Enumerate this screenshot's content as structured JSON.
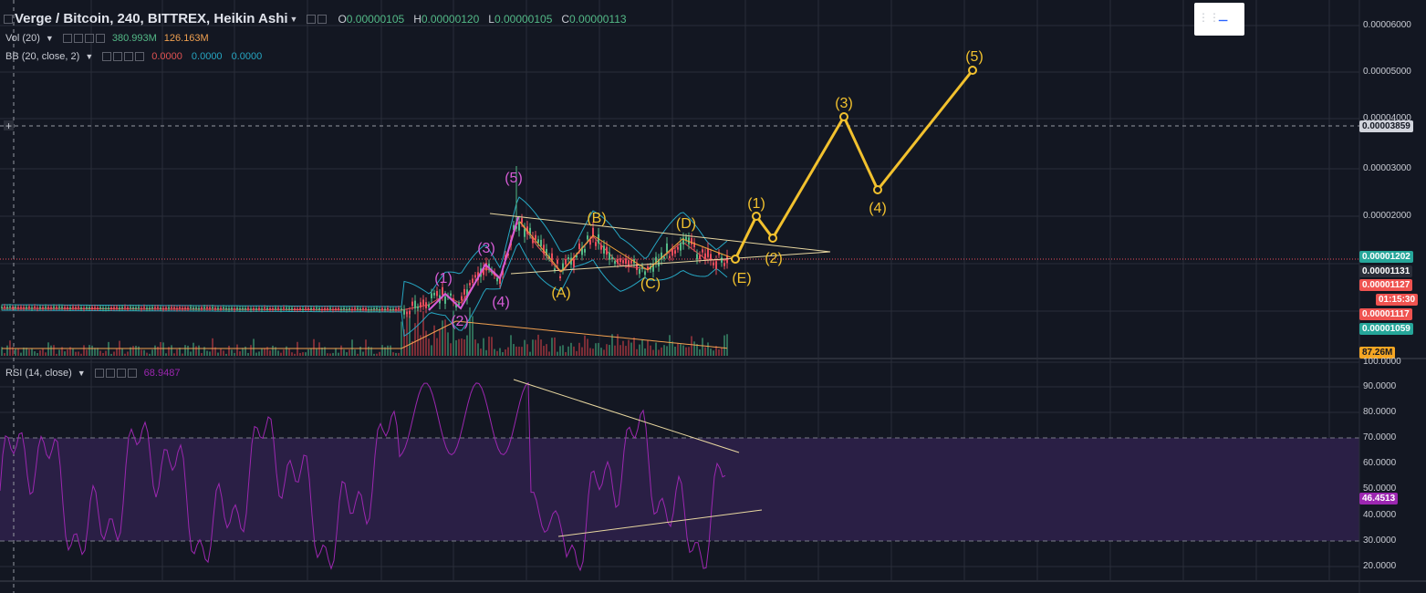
{
  "header": {
    "title": "Verge / Bitcoin, 240, BITTREX, Heikin Ashi",
    "ohlc": [
      {
        "k": "O",
        "v": "0.00000105"
      },
      {
        "k": "H",
        "v": "0.00000120"
      },
      {
        "k": "L",
        "v": "0.00000105"
      },
      {
        "k": "C",
        "v": "0.00000113"
      }
    ]
  },
  "indicators": {
    "vol": {
      "name": "Vol (20)",
      "v1": "380.993M",
      "v2": "126.163M"
    },
    "bb": {
      "name": "BB (20, close, 2)",
      "v1": "0.0000",
      "v2": "0.0000",
      "v3": "0.0000"
    },
    "rsi": {
      "name": "RSI (14, close)",
      "value": "68.9487"
    }
  },
  "price_axis": {
    "labels": [
      "0.00006000",
      "0.00005000",
      "0.00004000",
      "0.00003000",
      "0.00002000"
    ],
    "crosshair_price": "0.00003859",
    "tags": [
      {
        "text": "0.00001202",
        "color": "#26a69a"
      },
      {
        "text": "0.00001131",
        "color": "#2a2e39"
      },
      {
        "text": "0.00001127",
        "color": "#ef5350"
      },
      {
        "text": "01:15:30",
        "color": "#ef5350"
      },
      {
        "text": "0.00001117",
        "color": "#ef5350"
      },
      {
        "text": "0.00001059",
        "color": "#26a69a"
      }
    ],
    "volume_tag": "87.26M"
  },
  "rsi_axis": {
    "labels": [
      "100.0000",
      "90.0000",
      "80.0000",
      "70.0000",
      "60.0000",
      "50.0000",
      "40.0000",
      "30.0000",
      "20.0000"
    ],
    "current": "46.4513"
  },
  "wave_labels": {
    "historical": [
      "(1)",
      "(2)",
      "(3)",
      "(4)",
      "(5)"
    ],
    "corrective": [
      "(A)",
      "(B)",
      "(C)",
      "(D)",
      "(E)"
    ],
    "projection": [
      "(1)",
      "(2)",
      "(3)",
      "(4)",
      "(5)"
    ]
  },
  "colors": {
    "background": "#131722",
    "up": "#53b987",
    "down": "#eb4d5c",
    "projection": "#f2c12e",
    "wave": "#d65cd6",
    "rsi": "#9c27b0",
    "bb": "#26a6c2"
  }
}
